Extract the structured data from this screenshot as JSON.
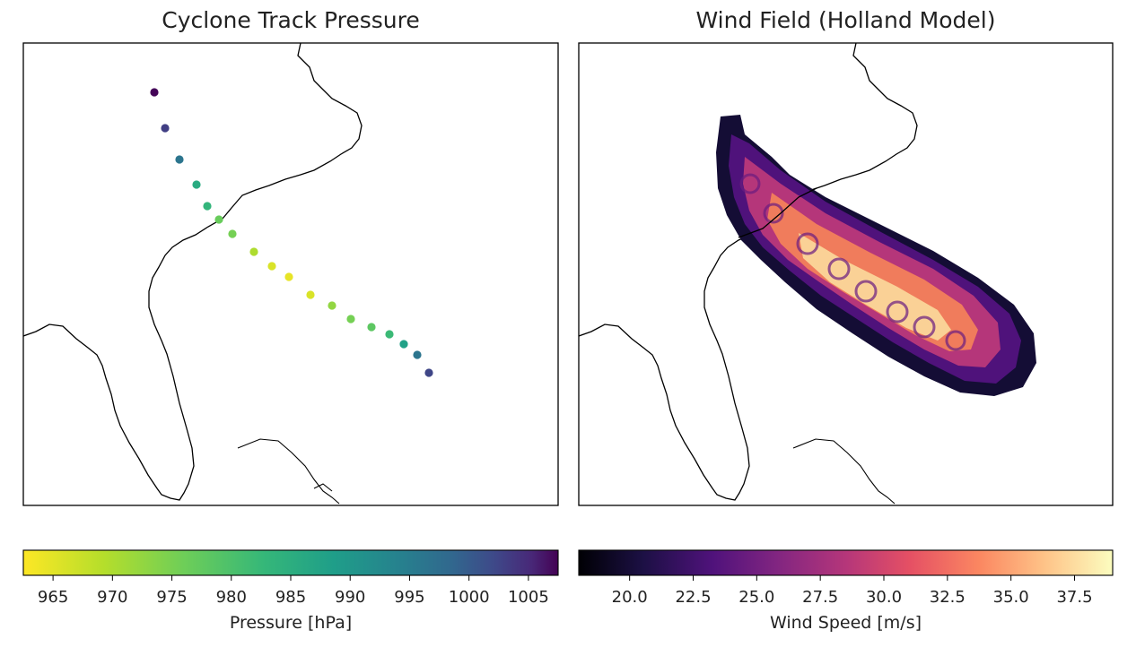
{
  "panels": {
    "left_title": "Cyclone Track Pressure",
    "right_title": "Wind Field (Holland Model)"
  },
  "chart_data": [
    {
      "type": "scatter",
      "title": "Cyclone Track Pressure",
      "x_label": "",
      "y_label": "",
      "points": [
        {
          "pressure": 1007
        },
        {
          "pressure": 999
        },
        {
          "pressure": 990
        },
        {
          "pressure": 980
        },
        {
          "pressure": 978
        },
        {
          "pressure": 973
        },
        {
          "pressure": 972
        },
        {
          "pressure": 968
        },
        {
          "pressure": 965
        },
        {
          "pressure": 964
        },
        {
          "pressure": 965
        },
        {
          "pressure": 970
        },
        {
          "pressure": 972
        },
        {
          "pressure": 974
        },
        {
          "pressure": 977
        },
        {
          "pressure": 982
        },
        {
          "pressure": 990
        },
        {
          "pressure": 998
        }
      ],
      "colorbar": {
        "label": "Pressure [hPa]",
        "cmap": "viridis_r",
        "range": [
          962.5,
          1007.5
        ],
        "ticks": [
          "965",
          "970",
          "975",
          "980",
          "985",
          "990",
          "995",
          "1000",
          "1005"
        ]
      }
    },
    {
      "type": "heatmap",
      "title": "Wind Field (Holland Model)",
      "colorbar": {
        "label": "Wind Speed [m/s]",
        "cmap": "magma",
        "range": [
          18.0,
          39.0
        ],
        "ticks": [
          "20.0",
          "22.5",
          "25.0",
          "27.5",
          "30.0",
          "32.5",
          "35.0",
          "37.5"
        ]
      }
    }
  ]
}
